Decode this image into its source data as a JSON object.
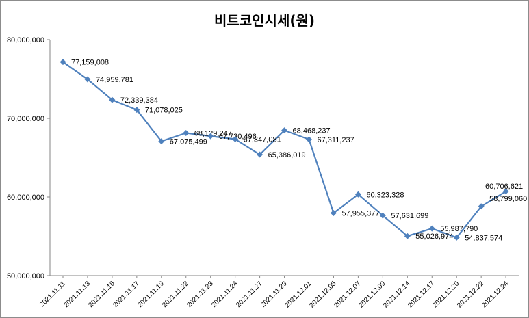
{
  "chart_data": {
    "type": "line",
    "title": "비트코인시세(원)",
    "xlabel": "",
    "ylabel": "",
    "ylim": [
      50000000,
      80000000
    ],
    "y_ticks": [
      "50,000,000",
      "60,000,000",
      "70,000,000",
      "80,000,000"
    ],
    "y_tick_values": [
      50000000,
      60000000,
      70000000,
      80000000
    ],
    "grid": false,
    "legend": "none",
    "line_color": "#4f81bd",
    "categories": [
      "2021.11.11",
      "2021.11.13",
      "2021.11.16",
      "2021.11.17",
      "2021.11.19",
      "2021.11.22",
      "2021.11.23",
      "2021.11.24",
      "2021.11.27",
      "2021.11.29",
      "2021.12.01",
      "2021.12.05",
      "2021.12.07",
      "2021.12.09",
      "2021.12.14",
      "2021.12.17",
      "2021.12.20",
      "2021.12.22",
      "2021.12.24"
    ],
    "values": [
      77159008,
      74959781,
      72339384,
      71078025,
      67075499,
      68129247,
      67730496,
      67347081,
      65386019,
      68468237,
      67311237,
      57955377,
      60323328,
      57631699,
      55026974,
      55987790,
      54837574,
      58799060,
      60706621
    ],
    "data_labels": [
      "77,159,008",
      "74,959,781",
      "72,339,384",
      "71,078,025",
      "67,075,499",
      "68,129,247",
      "67,730,496",
      "67,347,081",
      "65,386,019",
      "68,468,237",
      "67,311,237",
      "57,955,377",
      "60,323,328",
      "57,631,699",
      "55,026,974",
      "55,987,790",
      "54,837,574",
      "58,799,060",
      "60,706,621"
    ]
  }
}
